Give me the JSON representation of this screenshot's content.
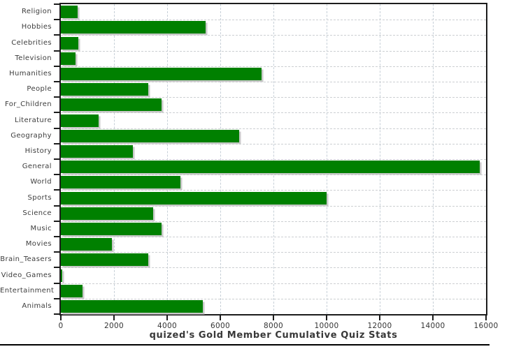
{
  "chart_data": {
    "type": "bar",
    "orientation": "horizontal",
    "title": "quized's Gold Member Cumulative Quiz Stats",
    "categories": [
      "Religion",
      "Hobbies",
      "Celebrities",
      "Television",
      "Humanities",
      "People",
      "For_Children",
      "Literature",
      "Geography",
      "History",
      "General",
      "World",
      "Sports",
      "Science",
      "Music",
      "Movies",
      "Brain_Teasers",
      "Video_Games",
      "Entertainment",
      "Animals"
    ],
    "values": [
      620,
      5450,
      650,
      560,
      7550,
      3300,
      3800,
      1410,
      6700,
      2700,
      15750,
      4500,
      10000,
      3470,
      3790,
      1930,
      3300,
      60,
      810,
      5330
    ],
    "xlabel": "",
    "ylabel": "",
    "xlim": [
      0,
      16000
    ],
    "x_ticks": [
      0,
      2000,
      4000,
      6000,
      8000,
      10000,
      12000,
      14000,
      16000
    ],
    "x_tick_labels": [
      "0",
      "2000",
      "4000",
      "6000",
      "8000",
      "10000",
      "12000",
      "14000",
      "16000"
    ],
    "grid": true,
    "legend_position": "none",
    "bar_color": "#008000",
    "shadow_color": "#c9c9c9",
    "grid_color": "#c7d0d8",
    "axis_color": "#1c1c1c",
    "label_color": "#3d3d3d",
    "title_color": "#383838",
    "background_color": "#ffffff"
  }
}
